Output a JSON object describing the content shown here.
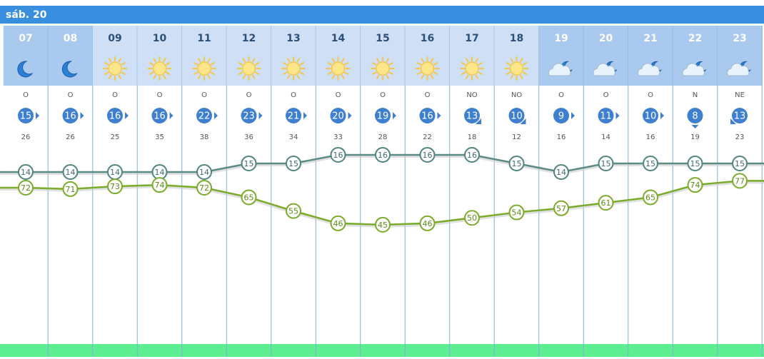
{
  "day": "sáb. 20",
  "hours": [
    {
      "hour": "07",
      "sky": "moon",
      "dir": "O",
      "arrow": "right",
      "wind": 15,
      "gust": 26,
      "temp": 14,
      "humidity": 72
    },
    {
      "hour": "08",
      "sky": "moon",
      "dir": "O",
      "arrow": "right",
      "wind": 16,
      "gust": 26,
      "temp": 14,
      "humidity": 71
    },
    {
      "hour": "09",
      "sky": "sun",
      "dir": "O",
      "arrow": "right",
      "wind": 16,
      "gust": 25,
      "temp": 14,
      "humidity": 73
    },
    {
      "hour": "10",
      "sky": "sun",
      "dir": "O",
      "arrow": "right",
      "wind": 16,
      "gust": 35,
      "temp": 14,
      "humidity": 74
    },
    {
      "hour": "11",
      "sky": "sun",
      "dir": "O",
      "arrow": "right",
      "wind": 22,
      "gust": 38,
      "temp": 14,
      "humidity": 72
    },
    {
      "hour": "12",
      "sky": "sun",
      "dir": "O",
      "arrow": "right",
      "wind": 23,
      "gust": 36,
      "temp": 15,
      "humidity": 65
    },
    {
      "hour": "13",
      "sky": "sun",
      "dir": "O",
      "arrow": "right",
      "wind": 21,
      "gust": 34,
      "temp": 15,
      "humidity": 55
    },
    {
      "hour": "14",
      "sky": "sun",
      "dir": "O",
      "arrow": "right",
      "wind": 20,
      "gust": 33,
      "temp": 16,
      "humidity": 46
    },
    {
      "hour": "15",
      "sky": "sun",
      "dir": "O",
      "arrow": "right",
      "wind": 19,
      "gust": 28,
      "temp": 16,
      "humidity": 45
    },
    {
      "hour": "16",
      "sky": "sun",
      "dir": "O",
      "arrow": "right",
      "wind": 16,
      "gust": 22,
      "temp": 16,
      "humidity": 46
    },
    {
      "hour": "17",
      "sky": "sun",
      "dir": "NO",
      "arrow": "down-right",
      "wind": 13,
      "gust": 18,
      "temp": 16,
      "humidity": 50
    },
    {
      "hour": "18",
      "sky": "sun",
      "dir": "NO",
      "arrow": "down-right",
      "wind": 10,
      "gust": 12,
      "temp": 15,
      "humidity": 54
    },
    {
      "hour": "19",
      "sky": "cloud-moon",
      "dir": "O",
      "arrow": "right",
      "wind": 9,
      "gust": 16,
      "temp": 14,
      "humidity": 57
    },
    {
      "hour": "20",
      "sky": "cloud-moon",
      "dir": "O",
      "arrow": "right",
      "wind": 11,
      "gust": 14,
      "temp": 15,
      "humidity": 61
    },
    {
      "hour": "21",
      "sky": "cloud-moon",
      "dir": "O",
      "arrow": "right",
      "wind": 10,
      "gust": 16,
      "temp": 15,
      "humidity": 65
    },
    {
      "hour": "22",
      "sky": "cloud-moon",
      "dir": "N",
      "arrow": "down",
      "wind": 8,
      "gust": 19,
      "temp": 15,
      "humidity": 74
    },
    {
      "hour": "23",
      "sky": "cloud-moon",
      "dir": "NE",
      "arrow": "down-left",
      "wind": 13,
      "gust": 23,
      "temp": 15,
      "humidity": 77
    }
  ]
}
